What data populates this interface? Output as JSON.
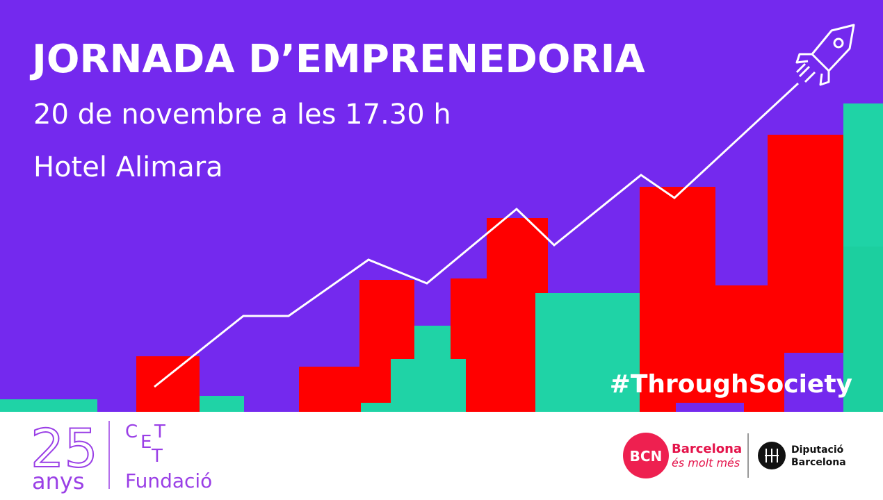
{
  "header": {
    "title": "JORNADA D’EMPRENEDORIA",
    "date": "20 de novembre a les 17.30 h",
    "venue": "Hotel Alimara"
  },
  "hashtag": "#ThroughSociety",
  "footer": {
    "anniversary": {
      "number": "25",
      "unit": "anys"
    },
    "foundation": {
      "letters": [
        "C",
        "E",
        "T",
        "T"
      ],
      "name": "Fundació"
    },
    "partners": [
      {
        "logo": "BCN",
        "name": "Barcelona",
        "slogan": "és molt més"
      },
      {
        "name_line1": "Diputació",
        "name_line2": "Barcelona"
      }
    ]
  }
}
